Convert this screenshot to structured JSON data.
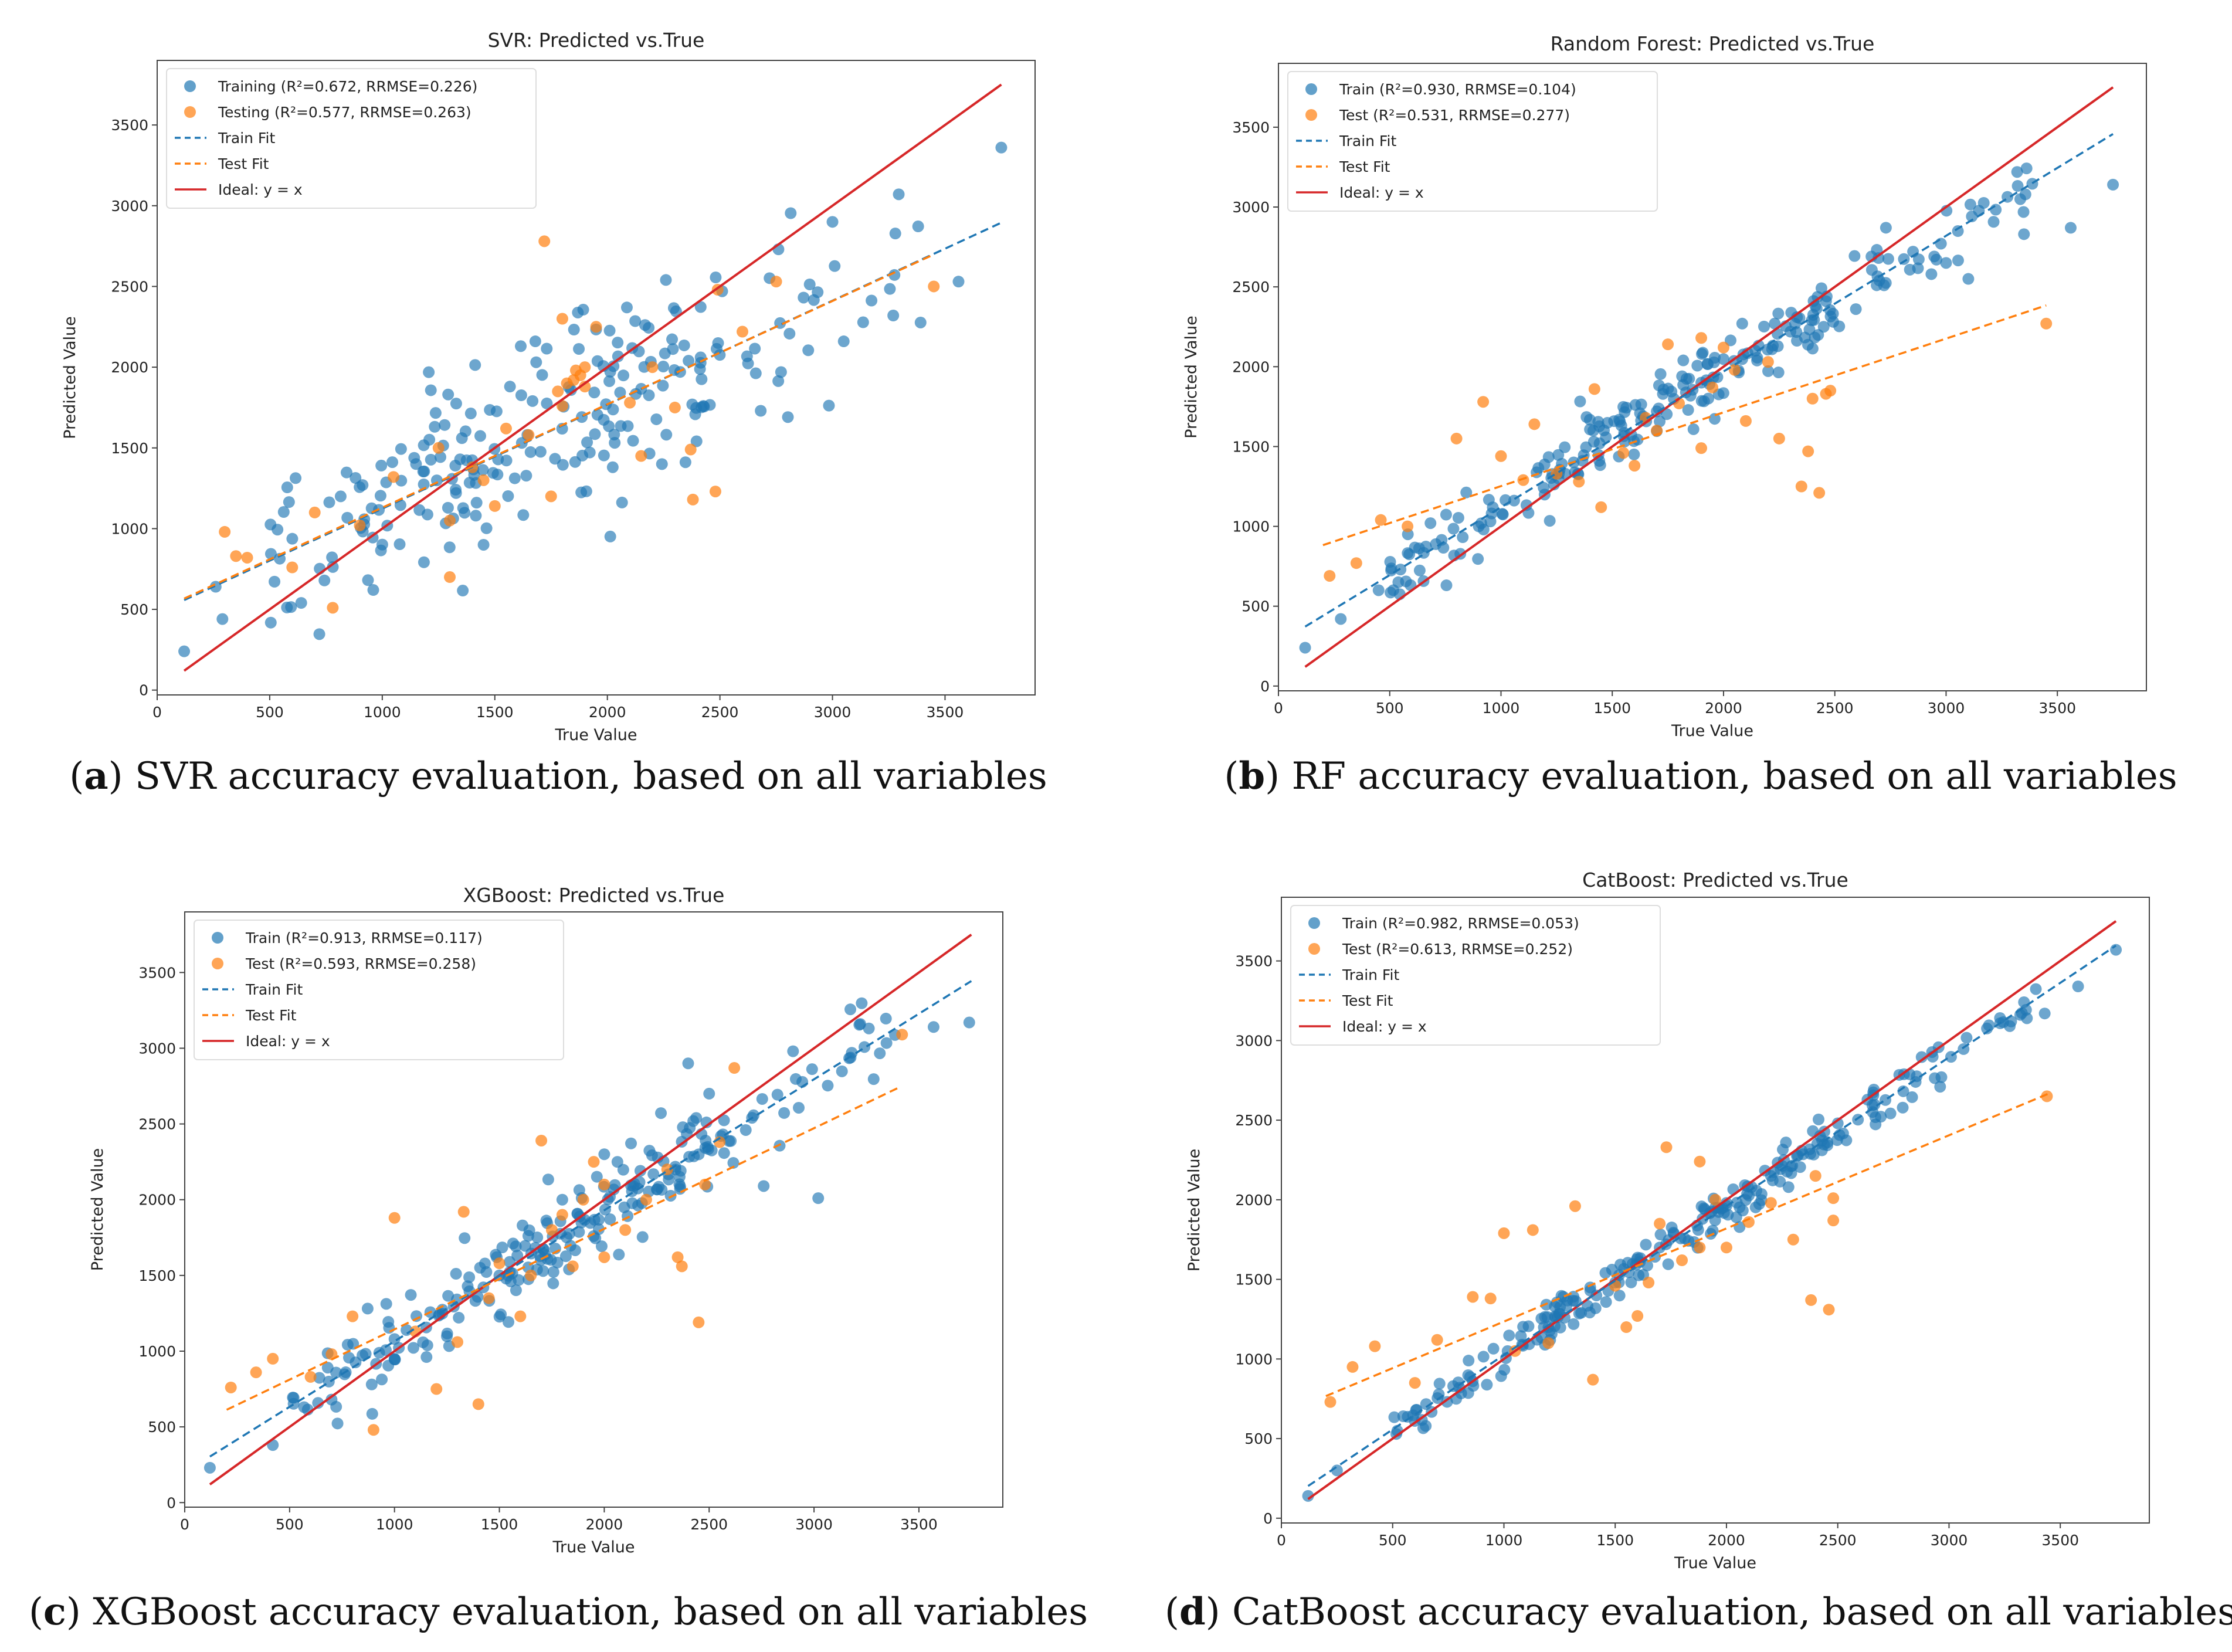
{
  "chart_data": [
    {
      "type": "scatter",
      "title": "SVR: Predicted vs.True",
      "xlabel": "True Value",
      "ylabel": "Predicted Value",
      "xlim": [
        0,
        3900
      ],
      "ylim": [
        -30,
        3900
      ],
      "xticks": [
        0,
        500,
        1000,
        1500,
        2000,
        2500,
        3000,
        3500
      ],
      "yticks": [
        0,
        500,
        1000,
        1500,
        2000,
        2500,
        3000,
        3500
      ],
      "caption_letter": "a",
      "caption_text": " SVR accuracy evaluation, based on all variables",
      "legend": {
        "position": "top-left",
        "train": "Training (R²=0.672, RRMSE=0.226)",
        "test": "Testing  (R²=0.577, RRMSE=0.263)",
        "train_fit": "Train Fit",
        "test_fit": "Test Fit",
        "ideal": "Ideal: y = x"
      },
      "train_fit": {
        "slope": 0.644,
        "intercept": 480,
        "x_range": [
          120,
          3750
        ]
      },
      "test_fit": {
        "slope": 0.64,
        "intercept": 490,
        "x_range": [
          120,
          3450
        ]
      },
      "ideal_range": [
        120,
        3750
      ],
      "noise": 290,
      "seed": 11,
      "train_points": [
        [
          120,
          240
        ],
        [
          260,
          640
        ],
        [
          290,
          440
        ],
        [
          3750,
          3360
        ],
        [
          3560,
          2530
        ],
        [
          3270,
          2320
        ],
        [
          3000,
          2900
        ],
        [
          3050,
          2160
        ],
        [
          2760,
          2730
        ],
        [
          2260,
          2540
        ],
        [
          1150,
          1400
        ],
        [
          1680,
          2160
        ],
        [
          960,
          620
        ],
        [
          640,
          540
        ],
        [
          1450,
          900
        ]
      ],
      "test_points": [
        [
          1720,
          2780
        ],
        [
          300,
          980
        ],
        [
          400,
          820
        ],
        [
          350,
          830
        ],
        [
          1300,
          700
        ],
        [
          780,
          510
        ],
        [
          1800,
          2300
        ],
        [
          2380,
          1180
        ],
        [
          2480,
          1230
        ],
        [
          2370,
          1490
        ],
        [
          3450,
          2500
        ],
        [
          2750,
          2530
        ],
        [
          1850,
          1920
        ],
        [
          1900,
          2000
        ],
        [
          1820,
          1900
        ],
        [
          1880,
          1950
        ],
        [
          1780,
          1850
        ],
        [
          1860,
          1980
        ],
        [
          1900,
          1880
        ],
        [
          1800,
          1760
        ],
        [
          600,
          760
        ],
        [
          700,
          1100
        ],
        [
          1250,
          1500
        ],
        [
          1550,
          1620
        ],
        [
          2200,
          2000
        ],
        [
          2490,
          2480
        ],
        [
          2100,
          1780
        ],
        [
          1400,
          1380
        ],
        [
          1050,
          1320
        ],
        [
          2300,
          1750
        ],
        [
          1750,
          1200
        ],
        [
          1650,
          1580
        ],
        [
          900,
          1020
        ],
        [
          2600,
          2220
        ],
        [
          1500,
          1140
        ],
        [
          1950,
          2250
        ],
        [
          2150,
          1450
        ],
        [
          1300,
          1050
        ],
        [
          1450,
          1300
        ]
      ]
    },
    {
      "type": "scatter",
      "title": "Random Forest: Predicted vs.True",
      "xlabel": "True Value",
      "ylabel": "Predicted Value",
      "xlim": [
        0,
        3900
      ],
      "ylim": [
        -30,
        3900
      ],
      "xticks": [
        0,
        500,
        1000,
        1500,
        2000,
        2500,
        3000,
        3500
      ],
      "yticks": [
        0,
        500,
        1000,
        1500,
        2000,
        2500,
        3000,
        3500
      ],
      "caption_letter": "b",
      "caption_text": " RF accuracy evaluation, based on all variables",
      "legend": {
        "position": "top-left",
        "train": "Train (R²=0.930, RRMSE=0.104)",
        "test": "Test  (R²=0.531, RRMSE=0.277)",
        "train_fit": "Train Fit",
        "test_fit": "Test Fit",
        "ideal": "Ideal: y = x"
      },
      "train_fit": {
        "slope": 0.85,
        "intercept": 270,
        "x_range": [
          120,
          3750
        ]
      },
      "test_fit": {
        "slope": 0.462,
        "intercept": 790,
        "x_range": [
          200,
          3450
        ]
      },
      "ideal_range": [
        120,
        3750
      ],
      "noise": 110,
      "seed": 23,
      "train_points": [
        [
          120,
          240
        ],
        [
          280,
          420
        ],
        [
          3750,
          3140
        ],
        [
          3560,
          2870
        ],
        [
          3350,
          2830
        ],
        [
          3100,
          2550
        ],
        [
          2700,
          2540
        ],
        [
          2230,
          2270
        ],
        [
          2330,
          2310
        ],
        [
          1700,
          1720
        ],
        [
          1900,
          1900
        ],
        [
          2450,
          2250
        ],
        [
          3000,
          2650
        ],
        [
          450,
          600
        ],
        [
          900,
          1000
        ]
      ],
      "test_points": [
        [
          230,
          690
        ],
        [
          350,
          770
        ],
        [
          460,
          1040
        ],
        [
          580,
          1000
        ],
        [
          800,
          1550
        ],
        [
          920,
          1780
        ],
        [
          1000,
          1440
        ],
        [
          1150,
          1640
        ],
        [
          1420,
          1860
        ],
        [
          1650,
          1680
        ],
        [
          1750,
          2140
        ],
        [
          1900,
          2180
        ],
        [
          2000,
          2120
        ],
        [
          1900,
          1490
        ],
        [
          2350,
          1250
        ],
        [
          2430,
          1210
        ],
        [
          2380,
          1470
        ],
        [
          2460,
          1830
        ],
        [
          2480,
          1850
        ],
        [
          3450,
          2270
        ],
        [
          1250,
          1330
        ],
        [
          1550,
          1460
        ],
        [
          2100,
          1660
        ],
        [
          1800,
          1770
        ],
        [
          2200,
          2030
        ],
        [
          1100,
          1290
        ],
        [
          1450,
          1120
        ],
        [
          2050,
          1980
        ],
        [
          1700,
          1600
        ],
        [
          1600,
          1380
        ],
        [
          2250,
          1550
        ],
        [
          2400,
          1800
        ],
        [
          1350,
          1280
        ],
        [
          1950,
          1870
        ]
      ]
    },
    {
      "type": "scatter",
      "title": "XGBoost: Predicted vs.True",
      "xlabel": "True Value",
      "ylabel": "Predicted Value",
      "xlim": [
        0,
        3900
      ],
      "ylim": [
        -30,
        3900
      ],
      "xticks": [
        0,
        500,
        1000,
        1500,
        2000,
        2500,
        3000,
        3500
      ],
      "yticks": [
        0,
        500,
        1000,
        1500,
        2000,
        2500,
        3000,
        3500
      ],
      "caption_letter": "c",
      "caption_text": " XGBoost accuracy evaluation, based on all variables",
      "legend": {
        "position": "top-left",
        "train": "Train (R²=0.913, RRMSE=0.117)",
        "test": "Test  (R²=0.593, RRMSE=0.258)",
        "train_fit": "Train Fit",
        "test_fit": "Test Fit",
        "ideal": "Ideal: y = x"
      },
      "train_fit": {
        "slope": 0.865,
        "intercept": 200,
        "x_range": [
          120,
          3750
        ]
      },
      "test_fit": {
        "slope": 0.664,
        "intercept": 480,
        "x_range": [
          200,
          3400
        ]
      },
      "ideal_range": [
        120,
        3750
      ],
      "noise": 140,
      "seed": 37,
      "train_points": [
        [
          120,
          230
        ],
        [
          420,
          380
        ],
        [
          3740,
          3170
        ],
        [
          3570,
          3140
        ],
        [
          3020,
          2010
        ],
        [
          2760,
          2090
        ],
        [
          3180,
          2970
        ],
        [
          2900,
          2980
        ],
        [
          2500,
          2700
        ],
        [
          2000,
          2300
        ],
        [
          1500,
          1500
        ],
        [
          1000,
          1080
        ],
        [
          700,
          680
        ],
        [
          2400,
          2900
        ],
        [
          1800,
          2000
        ]
      ],
      "test_points": [
        [
          220,
          760
        ],
        [
          340,
          860
        ],
        [
          420,
          950
        ],
        [
          1000,
          1880
        ],
        [
          1330,
          1920
        ],
        [
          1700,
          2390
        ],
        [
          2370,
          1560
        ],
        [
          2450,
          1190
        ],
        [
          2350,
          1620
        ],
        [
          2620,
          2870
        ],
        [
          3420,
          3090
        ],
        [
          900,
          480
        ],
        [
          1200,
          750
        ],
        [
          1400,
          650
        ],
        [
          700,
          980
        ],
        [
          600,
          830
        ],
        [
          2000,
          2100
        ],
        [
          1800,
          1900
        ],
        [
          1900,
          2000
        ],
        [
          1750,
          1800
        ],
        [
          2480,
          2100
        ],
        [
          1600,
          1230
        ],
        [
          2100,
          1800
        ],
        [
          1500,
          1580
        ],
        [
          1300,
          1060
        ],
        [
          800,
          1230
        ],
        [
          2200,
          2000
        ],
        [
          2000,
          1620
        ],
        [
          1100,
          1130
        ],
        [
          1650,
          1500
        ],
        [
          2550,
          2380
        ],
        [
          1850,
          1560
        ],
        [
          1450,
          1350
        ],
        [
          1950,
          2250
        ],
        [
          2300,
          2200
        ]
      ]
    },
    {
      "type": "scatter",
      "title": "CatBoost: Predicted vs.True",
      "xlabel": "True Value",
      "ylabel": "Predicted Value",
      "xlim": [
        0,
        3900
      ],
      "ylim": [
        -30,
        3900
      ],
      "xticks": [
        0,
        500,
        1000,
        1500,
        2000,
        2500,
        3000,
        3500
      ],
      "yticks": [
        0,
        500,
        1000,
        1500,
        2000,
        2500,
        3000,
        3500
      ],
      "caption_letter": "d",
      "caption_text": " CatBoost accuracy evaluation, based on all variables",
      "legend": {
        "position": "top-left",
        "train": "Train (R²=0.982, RRMSE=0.053)",
        "test": "Test  (R²=0.613, RRMSE=0.252)",
        "train_fit": "Train Fit",
        "test_fit": "Test Fit",
        "ideal": "Ideal: y = x"
      },
      "train_fit": {
        "slope": 0.935,
        "intercept": 90,
        "x_range": [
          120,
          3750
        ]
      },
      "test_fit": {
        "slope": 0.585,
        "intercept": 650,
        "x_range": [
          200,
          3450
        ]
      },
      "ideal_range": [
        120,
        3750
      ],
      "noise": 65,
      "seed": 53,
      "train_points": [
        [
          120,
          140
        ],
        [
          250,
          300
        ],
        [
          3750,
          3570
        ],
        [
          3580,
          3340
        ],
        [
          3430,
          3170
        ],
        [
          3350,
          3140
        ],
        [
          2850,
          2740
        ],
        [
          2960,
          2710
        ],
        [
          1700,
          1700
        ],
        [
          2000,
          1980
        ],
        [
          1200,
          1200
        ],
        [
          800,
          820
        ],
        [
          2500,
          2480
        ],
        [
          2200,
          2150
        ],
        [
          1500,
          1480
        ]
      ],
      "test_points": [
        [
          220,
          730
        ],
        [
          320,
          950
        ],
        [
          420,
          1080
        ],
        [
          600,
          850
        ],
        [
          700,
          1120
        ],
        [
          860,
          1390
        ],
        [
          940,
          1380
        ],
        [
          1000,
          1790
        ],
        [
          1130,
          1810
        ],
        [
          1320,
          1960
        ],
        [
          1730,
          2330
        ],
        [
          1880,
          2240
        ],
        [
          2380,
          1370
        ],
        [
          2460,
          1310
        ],
        [
          2480,
          1870
        ],
        [
          2480,
          2010
        ],
        [
          3440,
          2650
        ],
        [
          1400,
          870
        ],
        [
          1200,
          1100
        ],
        [
          1600,
          1270
        ],
        [
          1800,
          1620
        ],
        [
          1950,
          2000
        ],
        [
          2100,
          1860
        ],
        [
          2200,
          1980
        ],
        [
          1650,
          1480
        ],
        [
          1500,
          1460
        ],
        [
          2300,
          1750
        ],
        [
          1050,
          1050
        ],
        [
          2000,
          1700
        ],
        [
          1700,
          1850
        ],
        [
          1880,
          1700
        ],
        [
          1550,
          1200
        ],
        [
          2400,
          2150
        ]
      ]
    }
  ]
}
